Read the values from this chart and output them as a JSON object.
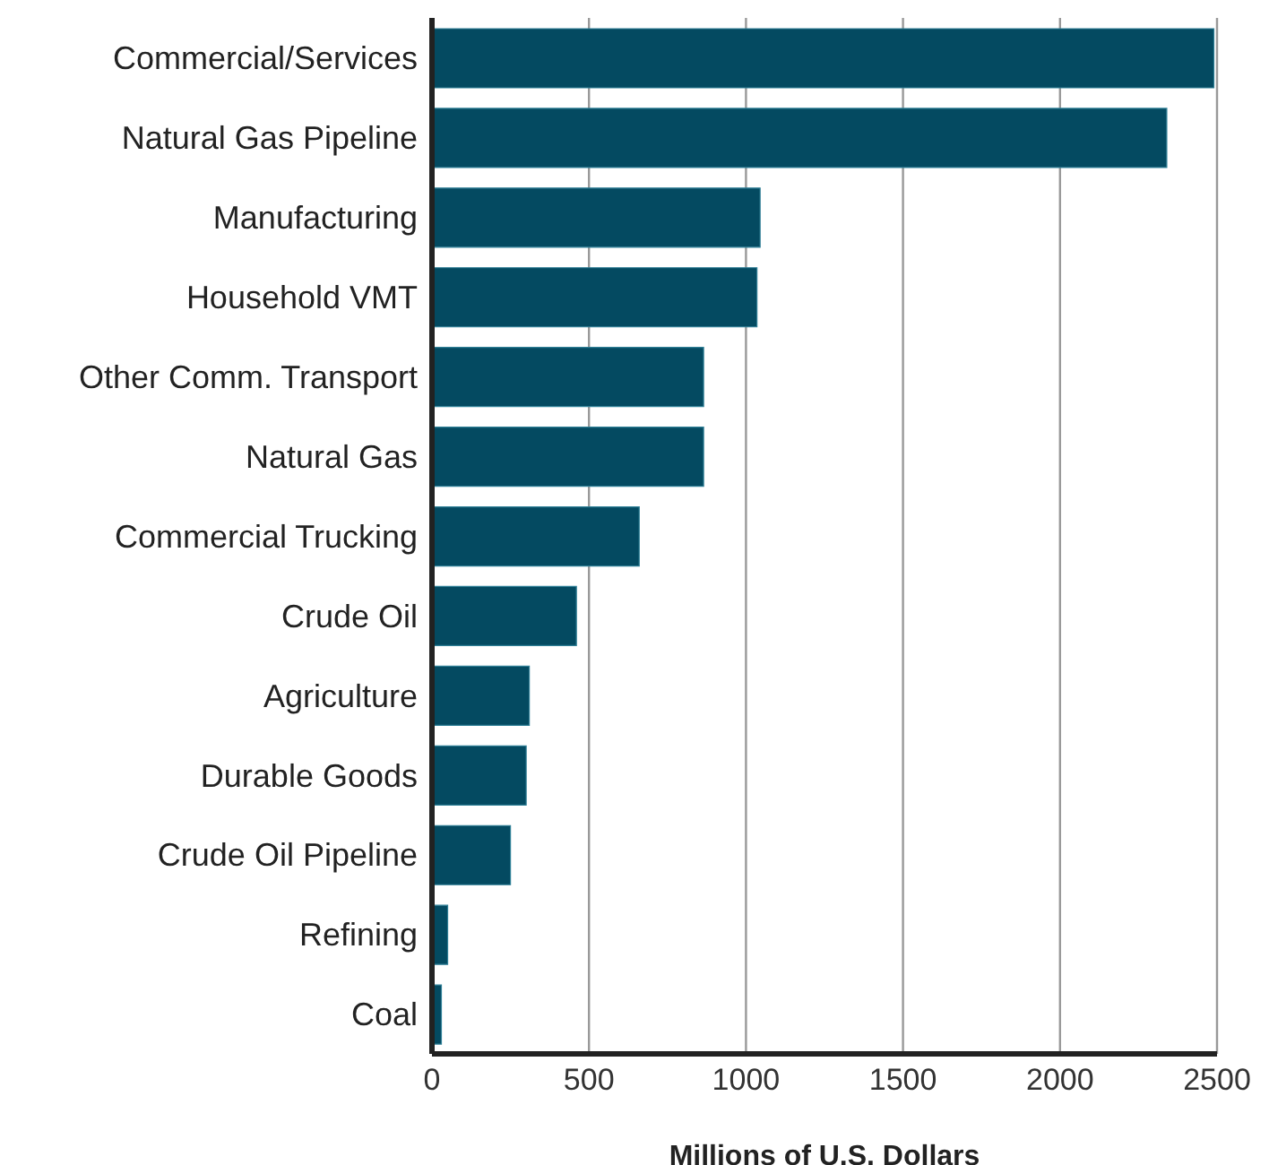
{
  "chart_data": {
    "type": "bar",
    "orientation": "horizontal",
    "xlabel": "Millions of U.S. Dollars",
    "categories": [
      "Commercial/Services",
      "Natural Gas Pipeline",
      "Manufacturing",
      "Household VMT",
      "Other Comm. Transport",
      "Natural Gas",
      "Commercial Trucking",
      "Crude Oil",
      "Agriculture",
      "Durable Goods",
      "Crude Oil Pipeline",
      "Refining",
      "Coal"
    ],
    "values": [
      2490,
      2340,
      1045,
      1035,
      865,
      865,
      660,
      460,
      310,
      300,
      250,
      50,
      30
    ],
    "color": "#044a61",
    "xlim": [
      0,
      2500
    ],
    "xticks": [
      0,
      500,
      1000,
      1500,
      2000,
      2500
    ],
    "grid": "x"
  }
}
